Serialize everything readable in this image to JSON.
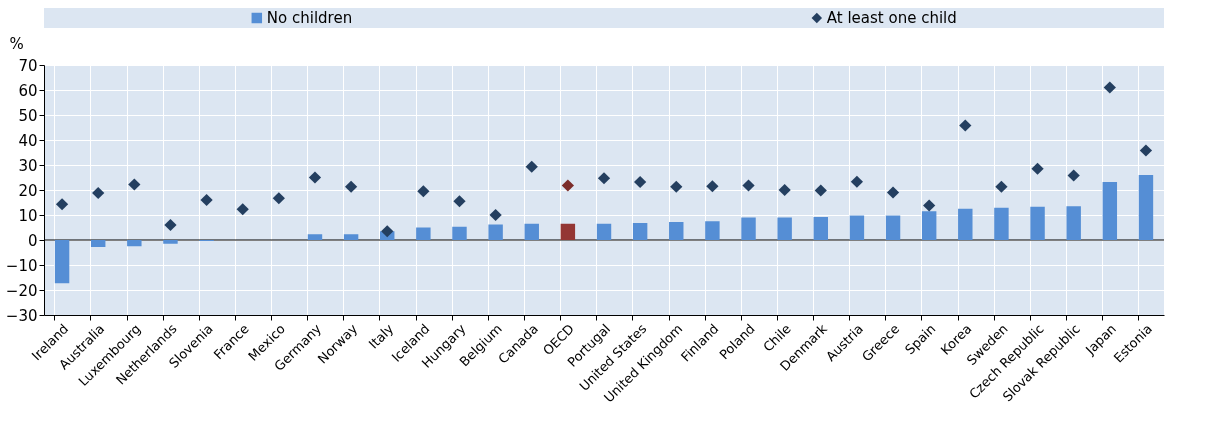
{
  "chart_data": {
    "type": "bar",
    "ylabel": "%",
    "categories": [
      "Ireland",
      "Australia",
      "Luxembourg",
      "Netherlands",
      "Slovenia",
      "France",
      "Mexico",
      "Germany",
      "Norway",
      "Italy",
      "Iceland",
      "Hungary",
      "Belgium",
      "Canada",
      "OECD",
      "Portugal",
      "United States",
      "United Kingdom",
      "Finland",
      "Poland",
      "Chile",
      "Denmark",
      "Austria",
      "Greece",
      "Spain",
      "Korea",
      "Sweden",
      "Czech Republic",
      "Slovak Republic",
      "Japan",
      "Estonia"
    ],
    "series": [
      {
        "name": "No children",
        "type": "bar",
        "color": "#558ed5",
        "colors": [
          "#558ed5",
          "#558ed5",
          "#558ed5",
          "#558ed5",
          "#558ed5",
          "#558ed5",
          "#558ed5",
          "#558ed5",
          "#558ed5",
          "#558ed5",
          "#558ed5",
          "#558ed5",
          "#558ed5",
          "#558ed5",
          "#943634",
          "#558ed5",
          "#558ed5",
          "#558ed5",
          "#558ed5",
          "#558ed5",
          "#558ed5",
          "#558ed5",
          "#558ed5",
          "#558ed5",
          "#558ed5",
          "#558ed5",
          "#558ed5",
          "#558ed5",
          "#558ed5",
          "#558ed5",
          "#558ed5"
        ],
        "values": [
          -17.3,
          -2.8,
          -2.5,
          -1.5,
          -0.4,
          0,
          0,
          2.3,
          2.3,
          3.5,
          5,
          5.3,
          6.2,
          6.5,
          6.5,
          6.5,
          6.8,
          7.2,
          7.5,
          9,
          9,
          9.2,
          9.8,
          9.8,
          11.5,
          12.5,
          12.9,
          13.3,
          13.5,
          23.2,
          26
        ]
      },
      {
        "name": "At least one child",
        "type": "scatter",
        "marker": "diamond",
        "color": "#243f60",
        "colors": [
          "#243f60",
          "#243f60",
          "#243f60",
          "#243f60",
          "#243f60",
          "#243f60",
          "#243f60",
          "#243f60",
          "#243f60",
          "#243f60",
          "#243f60",
          "#243f60",
          "#243f60",
          "#243f60",
          "#7b2c2a",
          "#243f60",
          "#243f60",
          "#243f60",
          "#243f60",
          "#243f60",
          "#243f60",
          "#243f60",
          "#243f60",
          "#243f60",
          "#243f60",
          "#243f60",
          "#243f60",
          "#243f60",
          "#243f60",
          "#243f60",
          "#243f60"
        ],
        "values": [
          14.3,
          18.8,
          22.2,
          6,
          16,
          12.3,
          16.7,
          25,
          21.3,
          3.5,
          19.5,
          15.5,
          10,
          29.3,
          21.8,
          24.7,
          23.2,
          21.3,
          21.5,
          21.8,
          20,
          19.8,
          23.3,
          19,
          13.8,
          45.8,
          21.3,
          28.5,
          25.8,
          61,
          35.8
        ]
      }
    ],
    "ylim": [
      -30,
      70
    ],
    "yticks": [
      -30,
      -20,
      -10,
      0,
      10,
      20,
      30,
      40,
      50,
      60,
      70
    ],
    "grid": true,
    "legend": "top"
  }
}
